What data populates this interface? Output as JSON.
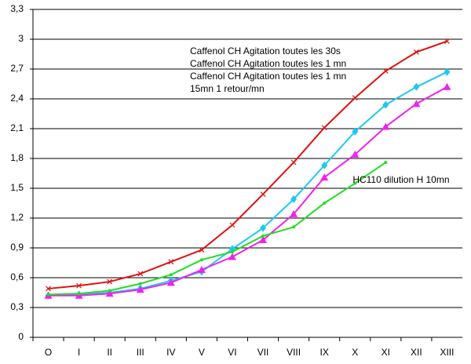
{
  "chart_data": {
    "type": "line",
    "categories": [
      "O",
      "I",
      "II",
      "III",
      "IV",
      "V",
      "VI",
      "VII",
      "VIII",
      "IX",
      "X",
      "XI",
      "XII",
      "XIII"
    ],
    "ylim": [
      0,
      3.3
    ],
    "yticks": [
      0,
      {
        "value": 0.3,
        "label": "0,3"
      },
      {
        "value": 0.6,
        "label": "0,6"
      },
      {
        "value": 0.9,
        "label": "0,9"
      },
      {
        "value": 1.2,
        "label": "1,2"
      },
      {
        "value": 1.5,
        "label": "1,5"
      },
      {
        "value": 1.8,
        "label": "1,8"
      },
      {
        "value": 2.1,
        "label": "2,1"
      },
      {
        "value": 2.4,
        "label": "2,4"
      },
      {
        "value": 2.7,
        "label": "2,7"
      },
      3,
      {
        "value": 3.3,
        "label": "3,3"
      }
    ],
    "grid": true,
    "series": [
      {
        "name": "Caffenol CH  Agitation toutes les 30s",
        "color": "#1ec8f0",
        "legend_color": "#2a2ad0",
        "marker": "diamond",
        "values": [
          0.42,
          0.43,
          0.45,
          0.49,
          0.57,
          0.66,
          0.89,
          1.1,
          1.39,
          1.73,
          2.07,
          2.34,
          2.52,
          2.67
        ]
      },
      {
        "name": "Caffenol CH Agitation toutes les 1 mn",
        "color": "#ee22ee",
        "legend_color": "#ee22ee",
        "marker": "triangle",
        "values": [
          0.42,
          0.42,
          0.44,
          0.48,
          0.55,
          0.68,
          0.81,
          0.98,
          1.24,
          1.61,
          1.84,
          2.12,
          2.35,
          2.52
        ]
      },
      {
        "name": "Caffenol CH Agitation toutes les 1 mn",
        "note": "15mn 1 retour/mn",
        "color": "#e01010",
        "legend_color": "#e01010",
        "marker": "x",
        "values": [
          0.49,
          0.52,
          0.56,
          0.64,
          0.76,
          0.88,
          1.13,
          1.44,
          1.76,
          2.11,
          2.41,
          2.68,
          2.87,
          2.98
        ]
      },
      {
        "name": "HC110 dilution H 10mn",
        "color": "#22dd22",
        "legend_color": "#22dd22",
        "marker": "dot",
        "label_at_end": true,
        "values": [
          0.43,
          0.44,
          0.47,
          0.54,
          0.63,
          0.78,
          0.86,
          1.02,
          1.11,
          1.35,
          1.55,
          1.76,
          null,
          null
        ]
      }
    ]
  }
}
